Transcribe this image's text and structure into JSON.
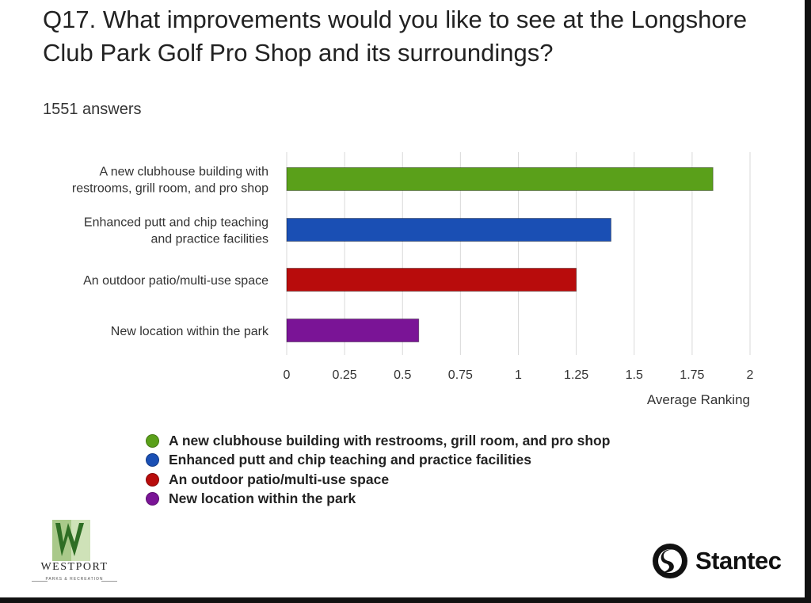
{
  "title": "Q17. What improvements would you like to see at the Longshore Club Park Golf Pro Shop and its surroundings?",
  "answers": "1551 answers",
  "chart_data": {
    "type": "bar",
    "orientation": "horizontal",
    "categories": [
      [
        "A new clubhouse building with",
        "restrooms, grill room, and pro shop"
      ],
      [
        "Enhanced putt and chip teaching",
        "and practice facilities"
      ],
      [
        "An outdoor patio/multi-use space"
      ],
      [
        "New location within the park"
      ]
    ],
    "values": [
      1.84,
      1.4,
      1.25,
      0.57
    ],
    "colors": [
      "#5aa01a",
      "#1a4fb4",
      "#b80c0c",
      "#7a1496"
    ],
    "xlabel": "Average Ranking",
    "ylabel": "",
    "xlim": [
      0,
      2
    ],
    "ticks": [
      0,
      0.25,
      0.5,
      0.75,
      1,
      1.25,
      1.5,
      1.75,
      2
    ],
    "tick_labels": [
      "0",
      "0.25",
      "0.5",
      "0.75",
      "1",
      "1.25",
      "1.5",
      "1.75",
      "2"
    ],
    "grid": true
  },
  "legend": [
    {
      "label": "A new clubhouse building with restrooms, grill room, and pro shop",
      "color": "#5aa01a"
    },
    {
      "label": "Enhanced putt and chip teaching and practice facilities",
      "color": "#1a4fb4"
    },
    {
      "label": "An outdoor patio/multi-use space",
      "color": "#b80c0c"
    },
    {
      "label": "New location within the park",
      "color": "#7a1496"
    }
  ],
  "logos": {
    "westport_name": "WESTPORT",
    "westport_sub": "PARKS & RECREATION",
    "stantec_name": "Stantec"
  }
}
